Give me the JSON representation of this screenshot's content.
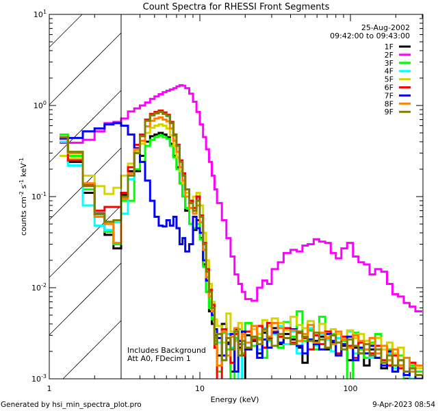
{
  "chart_data": {
    "type": "line",
    "title": "Count Spectra for RHESSI Front Segments",
    "xlabel": "Energy (keV)",
    "ylabel_parts": [
      "counts cm",
      "-2",
      " s",
      "-1",
      " keV",
      "-1"
    ],
    "xscale": "log",
    "yscale": "log",
    "xlim": [
      1,
      303
    ],
    "ylim": [
      0.001,
      10
    ],
    "x_ticks": [
      {
        "value": 1,
        "label": "1"
      },
      {
        "value": 10,
        "label": "10"
      },
      {
        "value": 100,
        "label": "100"
      }
    ],
    "y_ticks": [
      {
        "value": 10,
        "base": "10",
        "exp": "1"
      },
      {
        "value": 1,
        "base": "10",
        "exp": "0"
      },
      {
        "value": 0.1,
        "base": "10",
        "exp": "-1"
      },
      {
        "value": 0.01,
        "base": "10",
        "exp": "-2"
      },
      {
        "value": 0.001,
        "base": "10",
        "exp": "-3"
      }
    ],
    "date": "25-Aug-2002",
    "time_range": "09:42:00 to 09:43:00",
    "annotations": [
      "Includes Background",
      "Att A0, FDecim 1"
    ],
    "shaded_region": {
      "from_keV": 1,
      "to_keV": 3.0,
      "style": "hatched"
    },
    "legend_position": "top-right",
    "energy_edges": [
      1.17,
      1.33,
      1.67,
      2.0,
      2.33,
      2.67,
      3.0,
      3.33,
      3.67,
      4.0,
      4.33,
      4.67,
      5.0,
      5.33,
      5.67,
      6.0,
      6.33,
      6.67,
      7.0,
      7.33,
      7.67,
      8.0,
      8.5,
      9.0,
      9.5,
      10,
      10.5,
      11,
      11.5,
      12,
      12.5,
      13,
      14,
      15,
      16,
      17,
      18,
      19,
      20,
      22,
      24,
      26,
      28,
      30,
      33,
      36,
      40,
      44,
      48,
      52,
      57,
      62,
      68,
      74,
      80,
      87,
      95,
      104,
      113,
      123,
      134,
      146,
      160,
      175,
      190,
      207,
      226,
      247,
      270,
      300
    ],
    "series": [
      {
        "name": "1F",
        "color": "#000000",
        "values": [
          0.39,
          0.24,
          0.11,
          0.065,
          0.038,
          0.027,
          0.105,
          0.19,
          0.19,
          0.28,
          0.4,
          0.46,
          0.48,
          0.5,
          0.48,
          0.45,
          0.38,
          0.28,
          0.21,
          0.14,
          0.1,
          0.07,
          0.05,
          0.043,
          0.055,
          0.035,
          0.018,
          0.009,
          0.0055,
          0.004,
          0.003,
          0.0018,
          0.004,
          0.0025,
          0.0012,
          0.0035,
          0.0022,
          0.0009,
          0.003,
          0.0026,
          0.0019,
          0.0032,
          0.0028,
          0.0036,
          0.0024,
          0.0031,
          0.0027,
          0.0022,
          0.0015,
          0.0034,
          0.0026,
          0.0029,
          0.0021,
          0.0025,
          0.0018,
          0.0023,
          0.0016,
          0.0022,
          0.0019,
          0.0014,
          0.0021,
          0.0017,
          0.0013,
          0.0016,
          0.0012,
          0.0014,
          0.001,
          0.0012,
          0.0011
        ]
      },
      {
        "name": "2F",
        "color": "#ff00ff",
        "values": [
          0.39,
          0.39,
          0.42,
          0.52,
          0.64,
          0.66,
          0.72,
          0.86,
          0.93,
          1.0,
          1.08,
          1.18,
          1.26,
          1.33,
          1.4,
          1.45,
          1.5,
          1.55,
          1.62,
          1.67,
          1.65,
          1.55,
          1.35,
          1.1,
          0.85,
          0.62,
          0.45,
          0.33,
          0.24,
          0.17,
          0.12,
          0.085,
          0.055,
          0.035,
          0.022,
          0.014,
          0.011,
          0.009,
          0.0075,
          0.0072,
          0.01,
          0.012,
          0.011,
          0.016,
          0.019,
          0.024,
          0.026,
          0.025,
          0.029,
          0.03,
          0.034,
          0.032,
          0.031,
          0.024,
          0.021,
          0.027,
          0.031,
          0.022,
          0.019,
          0.018,
          0.014,
          0.016,
          0.015,
          0.011,
          0.0085,
          0.008,
          0.0068,
          0.0062,
          0.0055
        ]
      },
      {
        "name": "3F",
        "color": "#00ff00",
        "values": [
          0.48,
          0.28,
          0.12,
          0.064,
          0.041,
          0.03,
          0.09,
          0.09,
          0.2,
          0.24,
          0.36,
          0.42,
          0.45,
          0.47,
          0.45,
          0.43,
          0.36,
          0.27,
          0.2,
          0.14,
          0.1,
          0.075,
          0.05,
          0.045,
          0.05,
          0.034,
          0.017,
          0.009,
          0.006,
          0.0045,
          0.0028,
          0.0012,
          0.0032,
          0.0021,
          0.0008,
          0.0028,
          0.0035,
          0.0019,
          0.0041,
          0.0023,
          0.0028,
          0.0017,
          0.0038,
          0.0031,
          0.0022,
          0.0042,
          0.0029,
          0.0055,
          0.0026,
          0.0034,
          0.0021,
          0.0048,
          0.0027,
          0.0031,
          0.0018,
          0.0026,
          0.0009,
          0.0032,
          0.0021,
          0.0017,
          0.0025,
          0.0031,
          0.0016,
          0.0021,
          0.0013,
          0.0018,
          0.0009,
          0.0014,
          0.0012
        ]
      },
      {
        "name": "4F",
        "color": "#00ffff",
        "values": [
          0.4,
          0.22,
          0.08,
          0.048,
          0.043,
          0.052,
          0.065,
          0.155,
          0.31,
          0.47,
          0.68,
          0.78,
          0.82,
          0.85,
          0.81,
          0.76,
          0.64,
          0.47,
          0.36,
          0.24,
          0.17,
          0.12,
          0.085,
          0.07,
          0.095,
          0.06,
          0.03,
          0.015,
          0.009,
          0.006,
          0.0035,
          0.0025,
          0.0016,
          0.0031,
          0.0022,
          0.0027,
          0.0009,
          0.0024,
          0.0033,
          0.0028,
          0.0021,
          0.0036,
          0.0026,
          0.0031,
          0.0038,
          0.0024,
          0.0033,
          0.0019,
          0.0029,
          0.0036,
          0.0023,
          0.0031,
          0.0027,
          0.002,
          0.0028,
          0.0024,
          0.0033,
          0.0019,
          0.0022,
          0.0026,
          0.0017,
          0.0021,
          0.0015,
          0.0019,
          0.0013,
          0.0016,
          0.0012,
          0.001,
          0.0011
        ]
      },
      {
        "name": "5F",
        "color": "#d4d400",
        "values": [
          0.28,
          0.26,
          0.17,
          0.13,
          0.107,
          0.125,
          0.17,
          0.23,
          0.32,
          0.38,
          0.5,
          0.57,
          0.6,
          0.62,
          0.6,
          0.56,
          0.47,
          0.36,
          0.27,
          0.19,
          0.14,
          0.11,
          0.09,
          0.1,
          0.11,
          0.08,
          0.04,
          0.02,
          0.011,
          0.007,
          0.0045,
          0.0038,
          0.0025,
          0.0052,
          0.0033,
          0.0026,
          0.0041,
          0.0029,
          0.0022,
          0.0035,
          0.0031,
          0.0044,
          0.0038,
          0.0046,
          0.0041,
          0.0034,
          0.0048,
          0.0039,
          0.0036,
          0.0043,
          0.0032,
          0.004,
          0.0029,
          0.0035,
          0.0031,
          0.0027,
          0.0034,
          0.0028,
          0.0031,
          0.0026,
          0.0024,
          0.0028,
          0.0021,
          0.0025,
          0.0019,
          0.0022,
          0.0017,
          0.0015,
          0.0013
        ]
      },
      {
        "name": "6F",
        "color": "#ff0000",
        "values": [
          0.43,
          0.25,
          0.135,
          0.07,
          0.077,
          0.077,
          0.11,
          0.21,
          0.37,
          0.48,
          0.7,
          0.81,
          0.85,
          0.88,
          0.84,
          0.79,
          0.66,
          0.48,
          0.37,
          0.25,
          0.18,
          0.12,
          0.09,
          0.075,
          0.1,
          0.062,
          0.031,
          0.016,
          0.0095,
          0.0065,
          0.0022,
          0.0009,
          0.0035,
          0.0028,
          0.0015,
          0.0031,
          0.0024,
          0.0018,
          0.0033,
          0.0027,
          0.0038,
          0.0022,
          0.0041,
          0.0033,
          0.0029,
          0.0036,
          0.0025,
          0.0032,
          0.0028,
          0.0021,
          0.003,
          0.0024,
          0.0033,
          0.0026,
          0.0019,
          0.0029,
          0.0023,
          0.0017,
          0.0025,
          0.0021,
          0.0019,
          0.0023,
          0.0016,
          0.0014,
          0.0018,
          0.0013,
          0.0011,
          0.0015,
          0.001
        ]
      },
      {
        "name": "7F",
        "color": "#0000ff",
        "values": [
          0.44,
          0.44,
          0.52,
          0.56,
          0.62,
          0.64,
          0.6,
          0.48,
          0.34,
          0.24,
          0.15,
          0.09,
          0.06,
          0.048,
          0.047,
          0.055,
          0.048,
          0.06,
          0.045,
          0.03,
          0.035,
          0.025,
          0.03,
          0.06,
          0.045,
          0.04,
          0.02,
          0.012,
          0.008,
          0.005,
          0.0035,
          0.0028,
          0.0018,
          0.0024,
          0.0031,
          0.0012,
          0.0026,
          0.0033,
          0.0021,
          0.0029,
          0.0017,
          0.0027,
          0.0022,
          0.0032,
          0.0025,
          0.0028,
          0.0035,
          0.0023,
          0.0019,
          0.0027,
          0.0024,
          0.0021,
          0.0031,
          0.0026,
          0.0018,
          0.0024,
          0.0029,
          0.0016,
          0.0022,
          0.0019,
          0.0023,
          0.0017,
          0.0014,
          0.002,
          0.0012,
          0.0016,
          0.0011,
          0.0013,
          0.001
        ]
      },
      {
        "name": "8F",
        "color": "#ff8000",
        "values": [
          0.45,
          0.3,
          0.14,
          0.06,
          0.05,
          0.031,
          0.095,
          0.18,
          0.33,
          0.41,
          0.59,
          0.68,
          0.72,
          0.74,
          0.7,
          0.67,
          0.56,
          0.41,
          0.31,
          0.21,
          0.15,
          0.1,
          0.075,
          0.065,
          0.08,
          0.052,
          0.026,
          0.013,
          0.008,
          0.0055,
          0.0026,
          0.0014,
          0.0033,
          0.0018,
          0.0029,
          0.0036,
          0.0021,
          0.0031,
          0.0025,
          0.0038,
          0.0027,
          0.0034,
          0.0029,
          0.0041,
          0.0036,
          0.0028,
          0.0034,
          0.0026,
          0.0031,
          0.0039,
          0.0025,
          0.0032,
          0.0028,
          0.0024,
          0.0033,
          0.0027,
          0.0022,
          0.003,
          0.0026,
          0.0021,
          0.0028,
          0.0019,
          0.0023,
          0.0016,
          0.0021,
          0.0014,
          0.0017,
          0.0012,
          0.0014
        ]
      },
      {
        "name": "9F",
        "color": "#808000",
        "values": [
          0.45,
          0.31,
          0.13,
          0.064,
          0.053,
          0.055,
          0.1,
          0.17,
          0.3,
          0.46,
          0.68,
          0.78,
          0.82,
          0.85,
          0.81,
          0.77,
          0.64,
          0.47,
          0.36,
          0.24,
          0.17,
          0.12,
          0.085,
          0.07,
          0.09,
          0.06,
          0.03,
          0.015,
          0.009,
          0.006,
          0.0024,
          0.0031,
          0.0016,
          0.0028,
          0.0021,
          0.0033,
          0.0018,
          0.0026,
          0.0022,
          0.0029,
          0.0024,
          0.0035,
          0.0027,
          0.0023,
          0.0031,
          0.0028,
          0.0024,
          0.0033,
          0.0029,
          0.0026,
          0.0032,
          0.0027,
          0.0022,
          0.003,
          0.0025,
          0.0021,
          0.0027,
          0.0023,
          0.0019,
          0.0024,
          0.0018,
          0.0021,
          0.0015,
          0.0018,
          0.0014,
          0.0016,
          0.0012,
          0.0013,
          0.0011
        ]
      }
    ]
  },
  "footer": {
    "generated_by": "Generated by hsi_min_spectra_plot.pro",
    "timestamp": "9-Apr-2023 08:54"
  }
}
